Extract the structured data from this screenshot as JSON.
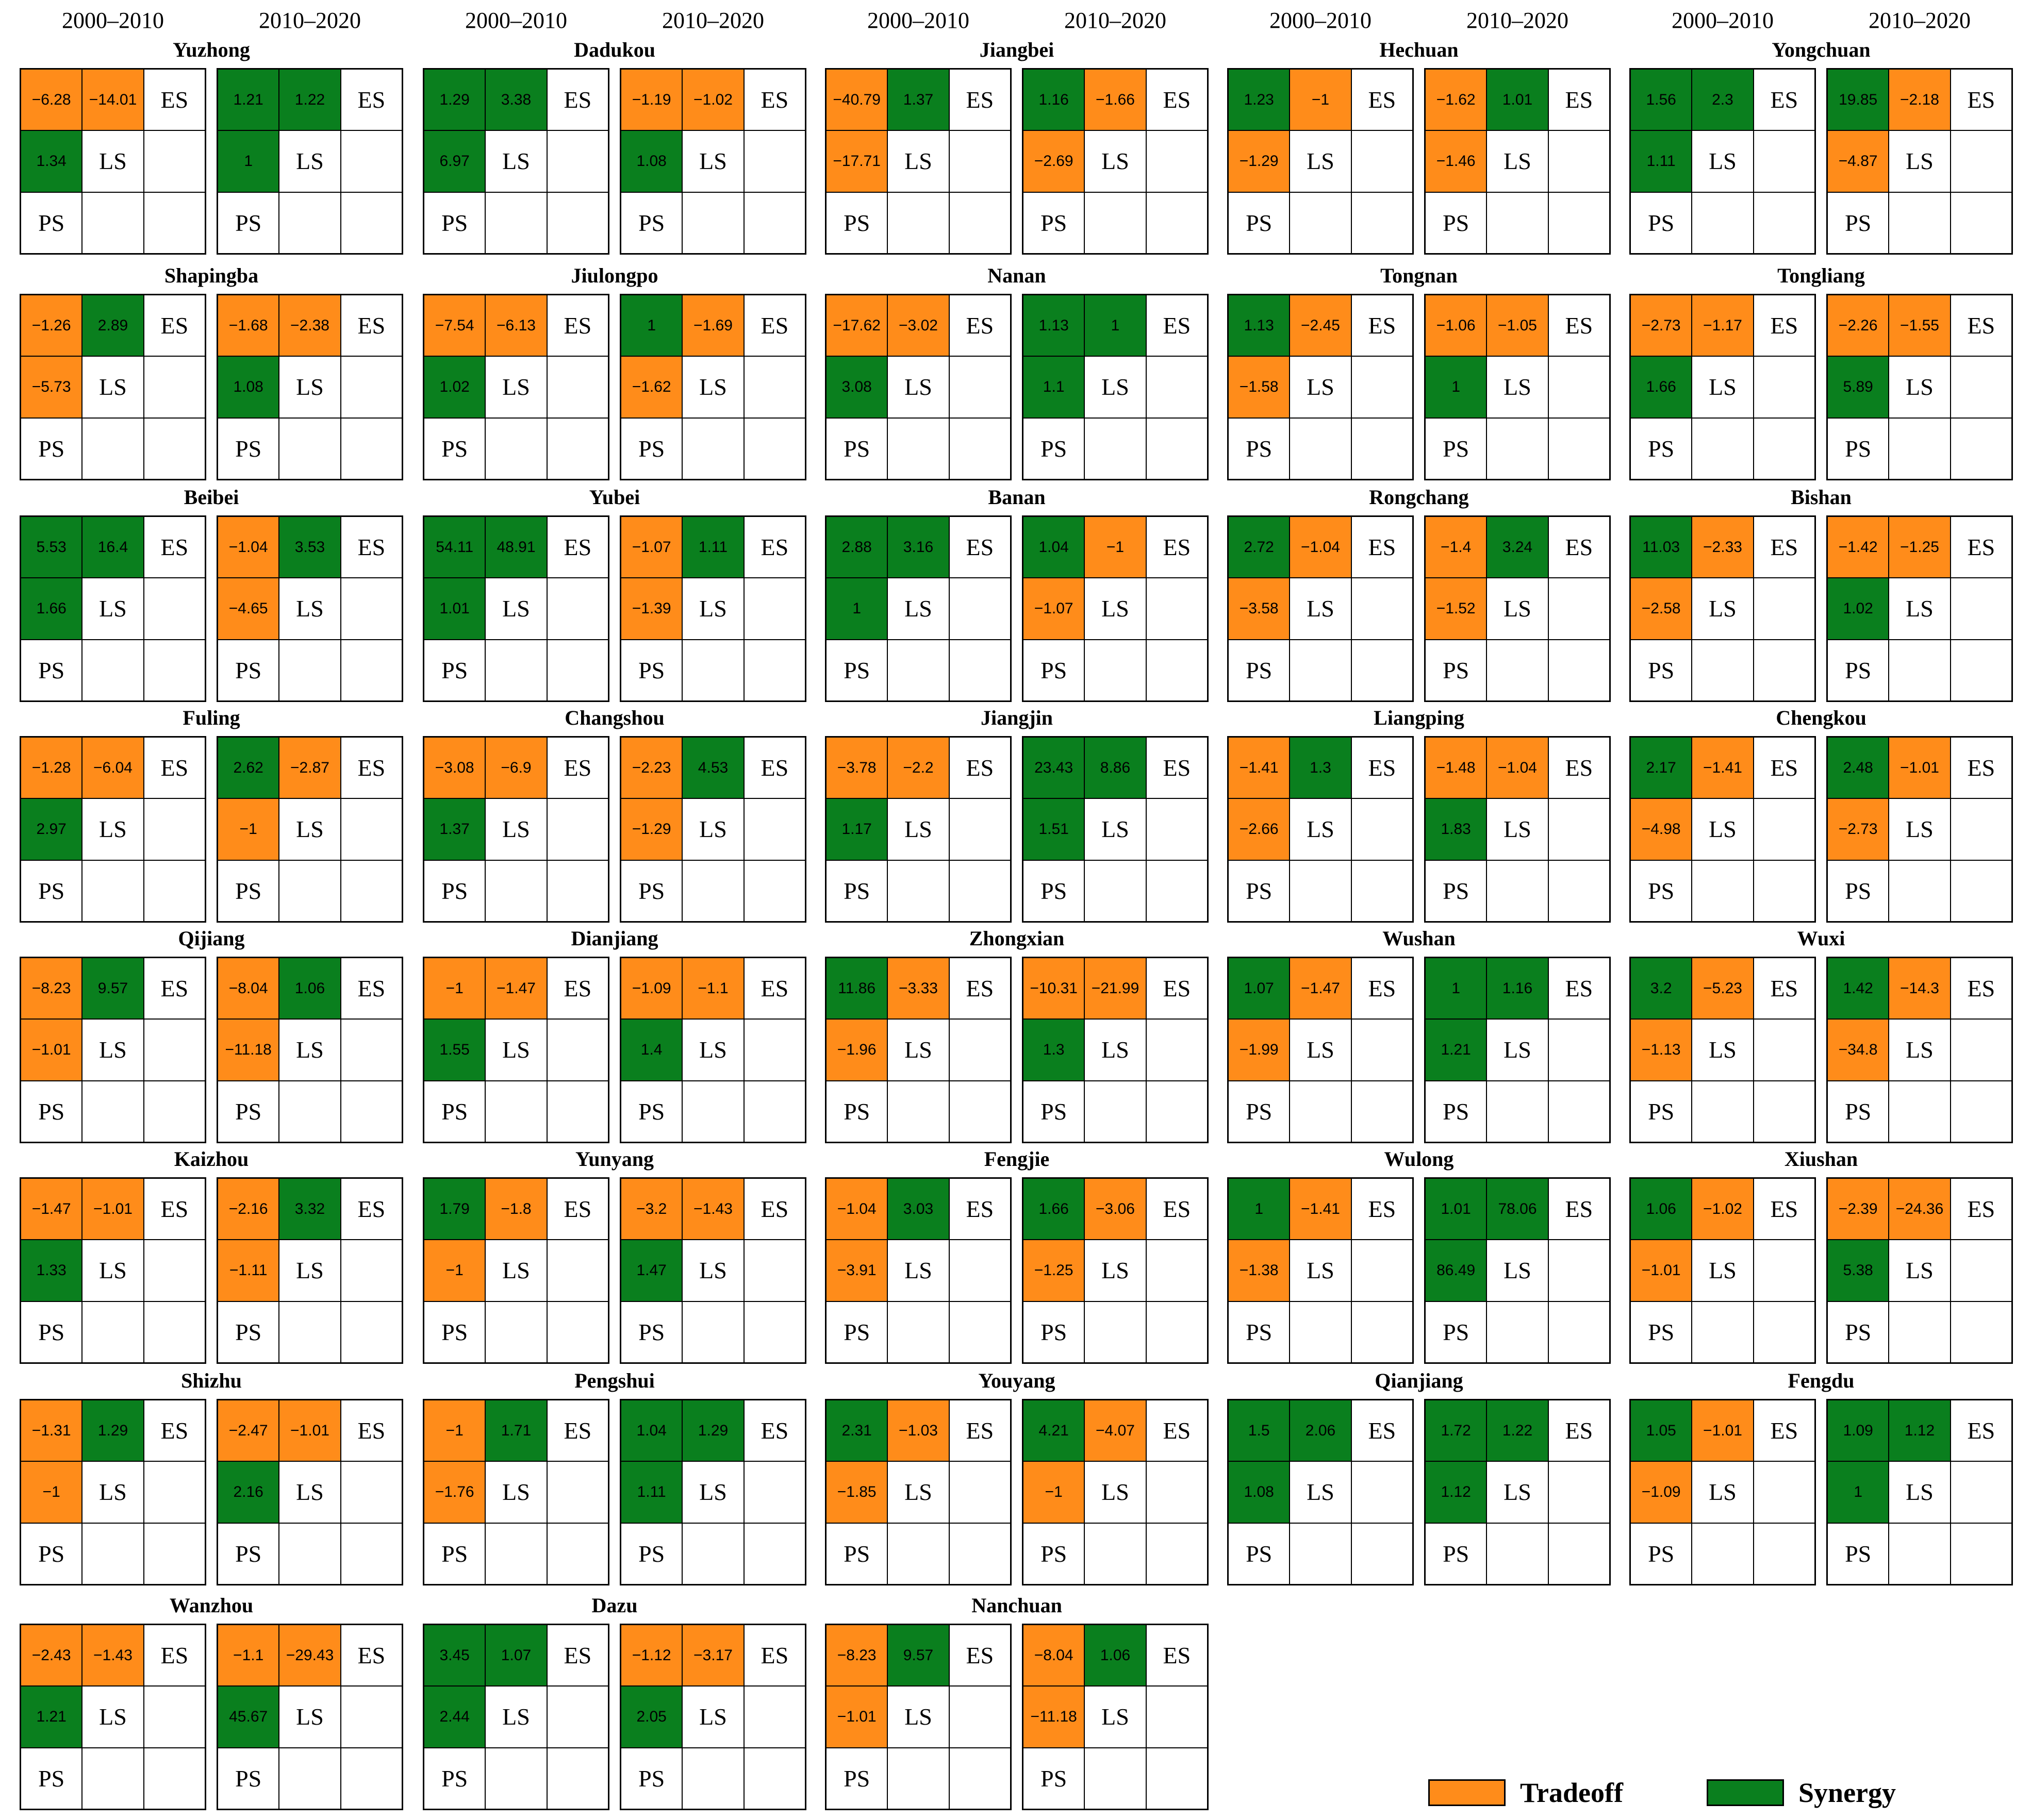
{
  "periods": [
    "2000–2010",
    "2010–2020"
  ],
  "labels": {
    "es": "ES",
    "ls": "LS",
    "ps": "PS"
  },
  "colors": {
    "tradeoff": "#ff8c1a",
    "synergy": "#0a7f1e",
    "empty": "#ffffff"
  },
  "legend": [
    {
      "label": "Tradeoff",
      "color": "#ff8c1a"
    },
    {
      "label": "Synergy",
      "color": "#0a7f1e"
    }
  ],
  "districts": [
    {
      "name": "Yuzhong",
      "p1": [
        "−6.28",
        "−14.01",
        "1.34"
      ],
      "p2": [
        "1.21",
        "1.22",
        "1"
      ]
    },
    {
      "name": "Dadukou",
      "p1": [
        "1.29",
        "3.38",
        "6.97"
      ],
      "p2": [
        "−1.19",
        "−1.02",
        "1.08"
      ]
    },
    {
      "name": "Jiangbei",
      "p1": [
        "−40.79",
        "1.37",
        "−17.71"
      ],
      "p2": [
        "1.16",
        "−1.66",
        "−2.69"
      ]
    },
    {
      "name": "Hechuan",
      "p1": [
        "1.23",
        "−1",
        "−1.29"
      ],
      "p2": [
        "−1.62",
        "1.01",
        "−1.46"
      ]
    },
    {
      "name": "Yongchuan",
      "p1": [
        "1.56",
        "2.3",
        "1.11"
      ],
      "p2": [
        "19.85",
        "−2.18",
        "−4.87"
      ]
    },
    {
      "name": "Shapingba",
      "p1": [
        "−1.26",
        "2.89",
        "−5.73"
      ],
      "p2": [
        "−1.68",
        "−2.38",
        "1.08"
      ]
    },
    {
      "name": "Jiulongpo",
      "p1": [
        "−7.54",
        "−6.13",
        "1.02"
      ],
      "p2": [
        "1",
        "−1.69",
        "−1.62"
      ]
    },
    {
      "name": "Nanan",
      "p1": [
        "−17.62",
        "−3.02",
        "3.08"
      ],
      "p2": [
        "1.13",
        "1",
        "1.1"
      ]
    },
    {
      "name": "Tongnan",
      "p1": [
        "1.13",
        "−2.45",
        "−1.58"
      ],
      "p2": [
        "−1.06",
        "−1.05",
        "1"
      ]
    },
    {
      "name": "Tongliang",
      "p1": [
        "−2.73",
        "−1.17",
        "1.66"
      ],
      "p2": [
        "−2.26",
        "−1.55",
        "5.89"
      ]
    },
    {
      "name": "Beibei",
      "p1": [
        "5.53",
        "16.4",
        "1.66"
      ],
      "p2": [
        "−1.04",
        "3.53",
        "−4.65"
      ]
    },
    {
      "name": "Yubei",
      "p1": [
        "54.11",
        "48.91",
        "1.01"
      ],
      "p2": [
        "−1.07",
        "1.11",
        "−1.39"
      ]
    },
    {
      "name": "Banan",
      "p1": [
        "2.88",
        "3.16",
        "1"
      ],
      "p2": [
        "1.04",
        "−1",
        "−1.07"
      ]
    },
    {
      "name": "Rongchang",
      "p1": [
        "2.72",
        "−1.04",
        "−3.58"
      ],
      "p2": [
        "−1.4",
        "3.24",
        "−1.52"
      ]
    },
    {
      "name": "Bishan",
      "p1": [
        "11.03",
        "−2.33",
        "−2.58"
      ],
      "p2": [
        "−1.42",
        "−1.25",
        "1.02"
      ]
    },
    {
      "name": "Fuling",
      "p1": [
        "−1.28",
        "−6.04",
        "2.97"
      ],
      "p2": [
        "2.62",
        "−2.87",
        "−1"
      ]
    },
    {
      "name": "Changshou",
      "p1": [
        "−3.08",
        "−6.9",
        "1.37"
      ],
      "p2": [
        "−2.23",
        "4.53",
        "−1.29"
      ]
    },
    {
      "name": "Jiangjin",
      "p1": [
        "−3.78",
        "−2.2",
        "1.17"
      ],
      "p2": [
        "23.43",
        "8.86",
        "1.51"
      ]
    },
    {
      "name": "Liangping",
      "p1": [
        "−1.41",
        "1.3",
        "−2.66"
      ],
      "p2": [
        "−1.48",
        "−1.04",
        "1.83"
      ]
    },
    {
      "name": "Chengkou",
      "p1": [
        "2.17",
        "−1.41",
        "−4.98"
      ],
      "p2": [
        "2.48",
        "−1.01",
        "−2.73"
      ]
    },
    {
      "name": "Qijiang",
      "p1": [
        "−8.23",
        "9.57",
        "−1.01"
      ],
      "p2": [
        "−8.04",
        "1.06",
        "−11.18"
      ]
    },
    {
      "name": "Dianjiang",
      "p1": [
        "−1",
        "−1.47",
        "1.55"
      ],
      "p2": [
        "−1.09",
        "−1.1",
        "1.4"
      ]
    },
    {
      "name": "Zhongxian",
      "p1": [
        "11.86",
        "−3.33",
        "−1.96"
      ],
      "p2": [
        "−10.31",
        "−21.99",
        "1.3"
      ]
    },
    {
      "name": "Wushan",
      "p1": [
        "1.07",
        "−1.47",
        "−1.99"
      ],
      "p2": [
        "1",
        "1.16",
        "1.21"
      ]
    },
    {
      "name": "Wuxi",
      "p1": [
        "3.2",
        "−5.23",
        "−1.13"
      ],
      "p2": [
        "1.42",
        "−14.3",
        "−34.8"
      ]
    },
    {
      "name": "Kaizhou",
      "p1": [
        "−1.47",
        "−1.01",
        "1.33"
      ],
      "p2": [
        "−2.16",
        "3.32",
        "−1.11"
      ]
    },
    {
      "name": "Yunyang",
      "p1": [
        "1.79",
        "−1.8",
        "−1"
      ],
      "p2": [
        "−3.2",
        "−1.43",
        "1.47"
      ]
    },
    {
      "name": "Fengjie",
      "p1": [
        "−1.04",
        "3.03",
        "−3.91"
      ],
      "p2": [
        "1.66",
        "−3.06",
        "−1.25"
      ]
    },
    {
      "name": "Wulong",
      "p1": [
        "1",
        "−1.41",
        "−1.38"
      ],
      "p2": [
        "1.01",
        "78.06",
        "86.49"
      ]
    },
    {
      "name": "Xiushan",
      "p1": [
        "1.06",
        "−1.02",
        "−1.01"
      ],
      "p2": [
        "−2.39",
        "−24.36",
        "5.38"
      ]
    },
    {
      "name": "Shizhu",
      "p1": [
        "−1.31",
        "1.29",
        "−1"
      ],
      "p2": [
        "−2.47",
        "−1.01",
        "2.16"
      ]
    },
    {
      "name": "Pengshui",
      "p1": [
        "−1",
        "1.71",
        "−1.76"
      ],
      "p2": [
        "1.04",
        "1.29",
        "1.11"
      ]
    },
    {
      "name": "Youyang",
      "p1": [
        "2.31",
        "−1.03",
        "−1.85"
      ],
      "p2": [
        "4.21",
        "−4.07",
        "−1"
      ]
    },
    {
      "name": "Qianjiang",
      "p1": [
        "1.5",
        "2.06",
        "1.08"
      ],
      "p2": [
        "1.72",
        "1.22",
        "1.12"
      ]
    },
    {
      "name": "Fengdu",
      "p1": [
        "1.05",
        "−1.01",
        "−1.09"
      ],
      "p2": [
        "1.09",
        "1.12",
        "1"
      ]
    },
    {
      "name": "Wanzhou",
      "p1": [
        "−2.43",
        "−1.43",
        "1.21"
      ],
      "p2": [
        "−1.1",
        "−29.43",
        "45.67"
      ]
    },
    {
      "name": "Dazu",
      "p1": [
        "3.45",
        "1.07",
        "2.44"
      ],
      "p2": [
        "−1.12",
        "−3.17",
        "2.05"
      ]
    },
    {
      "name": "Nanchuan",
      "p1": [
        "−8.23",
        "9.57",
        "−1.01"
      ],
      "p2": [
        "−8.04",
        "1.06",
        "−11.18"
      ]
    }
  ]
}
